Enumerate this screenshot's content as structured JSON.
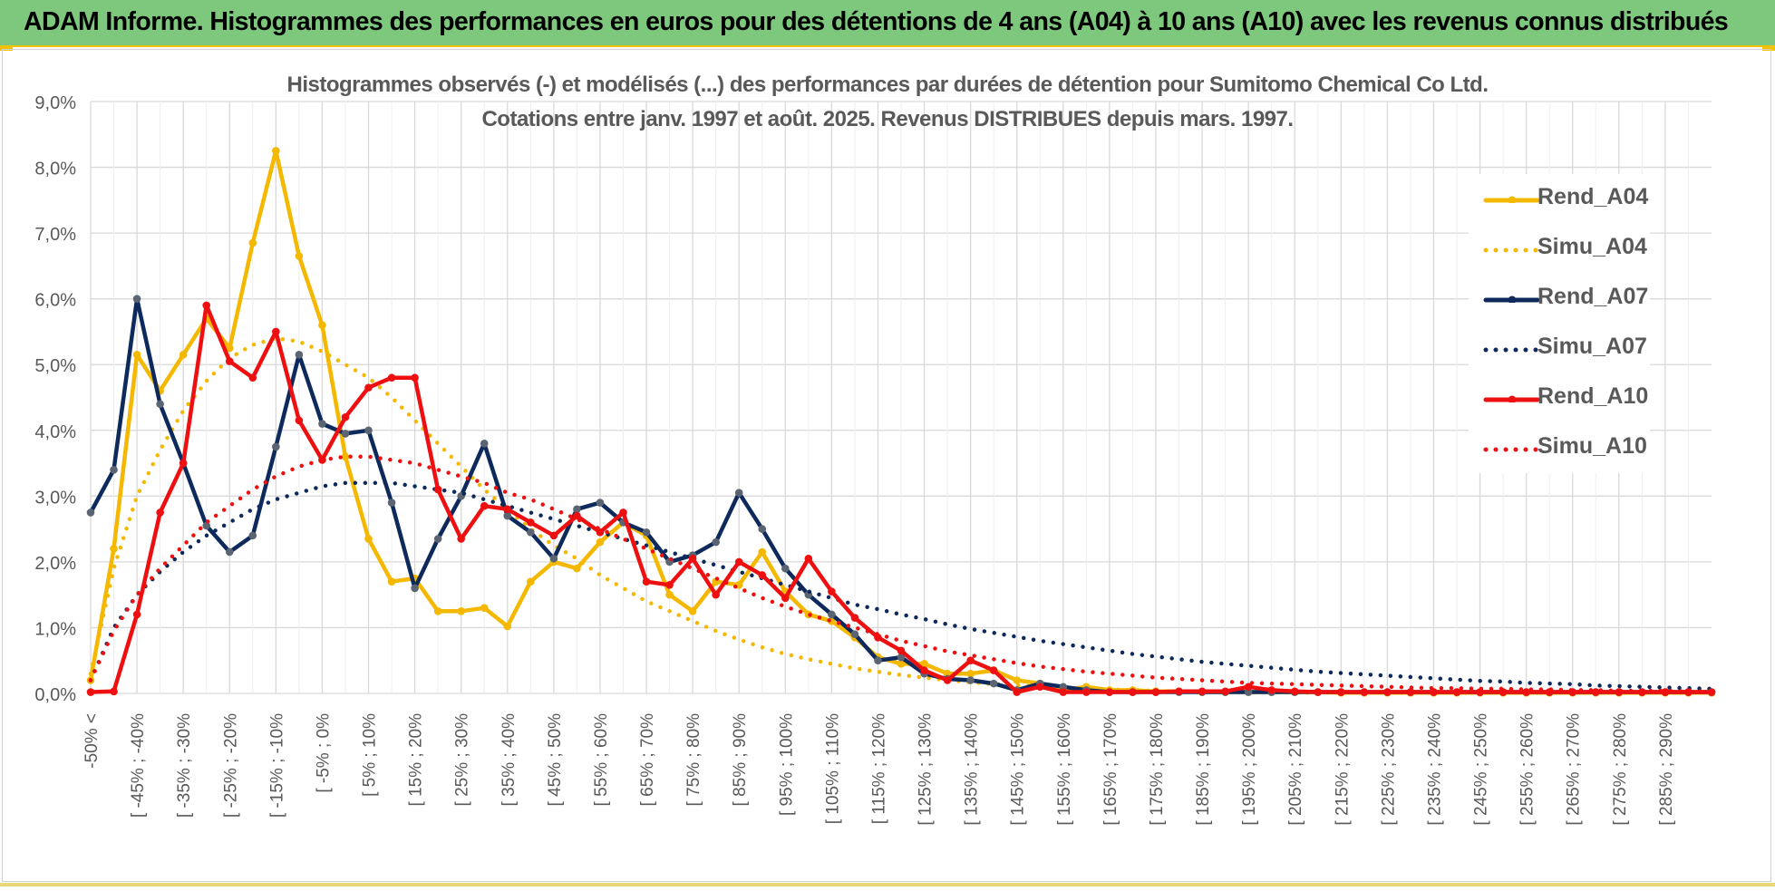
{
  "header": {
    "title": "ADAM Informe. Histogrammes des performances en euros pour des détentions de 4 ans (A04) à 10 ans (A10) avec les revenus connus distribués"
  },
  "colors": {
    "header_bg": "#7dc87c",
    "A04": "#f5b800",
    "A07": "#0e2a5c",
    "A10": "#ee1010",
    "grid": "#d9d9d9",
    "text": "#595959"
  },
  "chart_data": {
    "type": "line",
    "title": "Histogrammes observés (-) et modélisés (...) des performances par durées de détention pour Sumitomo Chemical Co Ltd.",
    "subtitle": "Cotations entre janv. 1997 et août. 2025. Revenus DISTRIBUES depuis mars. 1997.",
    "xlabel": "",
    "ylabel": "",
    "ylim": [
      0,
      9
    ],
    "y_unit": "%",
    "y_ticks": [
      "0,0%",
      "1,0%",
      "2,0%",
      "3,0%",
      "4,0%",
      "5,0%",
      "6,0%",
      "7,0%",
      "8,0%",
      "9,0%"
    ],
    "grid": true,
    "legend_position": "right",
    "x_labels": [
      "-50% <",
      "[ -45% ; -40%",
      "[ -35% ; -30%",
      "[ -25% ; -20%",
      "[ -15% ; -10%",
      "[ -5% ; 0%",
      "[ 5% ; 10%",
      "[ 15% ; 20%",
      "[ 25% ; 30%",
      "[ 35% ; 40%",
      "[ 45% ; 50%",
      "[ 55% ; 60%",
      "[ 65% ; 70%",
      "[ 75% ; 80%",
      "[ 85% ; 90%",
      "[ 95% ; 100%",
      "[ 105% ; 110%",
      "[ 115% ; 120%",
      "[ 125% ; 130%",
      "[ 135% ; 140%",
      "[ 145% ; 150%",
      "[ 155% ; 160%",
      "[ 165% ; 170%",
      "[ 175% ; 180%",
      "[ 185% ; 190%",
      "[ 195% ; 200%",
      "[ 205% ; 210%",
      "[ 215% ; 220%",
      "[ 225% ; 230%",
      "[ 235% ; 240%",
      "[ 245% ; 250%",
      "[ 255% ; 260%",
      "[ 265% ; 270%",
      "[ 275% ; 280%",
      "[ 285% ; 290%"
    ],
    "series": [
      {
        "name": "Rend_A04",
        "style": "solid",
        "color": "#f5b800",
        "values": [
          0.2,
          2.2,
          5.15,
          4.6,
          5.15,
          5.7,
          5.25,
          6.85,
          8.25,
          6.65,
          5.6,
          3.6,
          2.35,
          1.7,
          1.75,
          1.25,
          1.25,
          1.3,
          1.02,
          1.7,
          2.0,
          1.9,
          2.3,
          2.6,
          2.4,
          1.5,
          1.25,
          1.7,
          1.65,
          2.15,
          1.55,
          1.2,
          1.1,
          0.85,
          0.55,
          0.45,
          0.45,
          0.3,
          0.3,
          0.35,
          0.2,
          0.15,
          0.05,
          0.1,
          0.05,
          0.05,
          0.03,
          0.03,
          0.02,
          0.02,
          0.02,
          0.02,
          0.02,
          0.02,
          0.01,
          0.01,
          0.01,
          0.01,
          0.01,
          0.01,
          0.01,
          0.01,
          0.01,
          0.01,
          0.01,
          0.01,
          0.01,
          0.01,
          0.01,
          0.01,
          0.01
        ]
      },
      {
        "name": "Simu_A04",
        "style": "dotted",
        "color": "#f5b800",
        "values": [
          0.3,
          1.9,
          3.0,
          3.7,
          4.3,
          4.75,
          5.1,
          5.3,
          5.4,
          5.35,
          5.2,
          5.0,
          4.8,
          4.5,
          4.15,
          3.8,
          3.45,
          3.1,
          2.8,
          2.5,
          2.25,
          2.05,
          1.8,
          1.6,
          1.4,
          1.25,
          1.1,
          0.95,
          0.82,
          0.7,
          0.6,
          0.52,
          0.45,
          0.38,
          0.33,
          0.28,
          0.24,
          0.2,
          0.17,
          0.14,
          0.12,
          0.1,
          0.08,
          0.07,
          0.06,
          0.05,
          0.04,
          0.03,
          0.03,
          0.02,
          0.02,
          0.02,
          0.01,
          0.01,
          0.01,
          0.01,
          0.01,
          0.01,
          0.01,
          0.01,
          0.01,
          0.01,
          0.01,
          0.01,
          0.01,
          0.01,
          0.01,
          0.01,
          0.01,
          0.01,
          0.01
        ]
      },
      {
        "name": "Rend_A07",
        "style": "solid",
        "color": "#0e2a5c",
        "values": [
          2.75,
          3.4,
          6.0,
          4.4,
          3.5,
          2.55,
          2.15,
          2.4,
          3.75,
          5.15,
          4.1,
          3.95,
          4.0,
          2.9,
          1.6,
          2.35,
          3.0,
          3.8,
          2.7,
          2.45,
          2.05,
          2.8,
          2.9,
          2.6,
          2.45,
          2.0,
          2.1,
          2.3,
          3.05,
          2.5,
          1.9,
          1.5,
          1.2,
          0.9,
          0.5,
          0.55,
          0.3,
          0.22,
          0.2,
          0.15,
          0.05,
          0.15,
          0.1,
          0.05,
          0.02,
          0.02,
          0.02,
          0.02,
          0.02,
          0.02,
          0.02,
          0.02,
          0.02,
          0.02,
          0.02,
          0.02,
          0.02,
          0.02,
          0.02,
          0.02,
          0.02,
          0.02,
          0.02,
          0.02,
          0.02,
          0.02,
          0.02,
          0.02,
          0.02,
          0.02,
          0.02
        ]
      },
      {
        "name": "Simu_A07",
        "style": "dotted",
        "color": "#0e2a5c",
        "values": [
          0.2,
          1.0,
          1.5,
          1.85,
          2.15,
          2.4,
          2.6,
          2.8,
          2.95,
          3.05,
          3.15,
          3.2,
          3.2,
          3.2,
          3.15,
          3.1,
          3.05,
          2.95,
          2.85,
          2.75,
          2.65,
          2.55,
          2.45,
          2.35,
          2.25,
          2.15,
          2.05,
          1.95,
          1.85,
          1.75,
          1.65,
          1.55,
          1.45,
          1.35,
          1.28,
          1.2,
          1.13,
          1.05,
          0.98,
          0.92,
          0.86,
          0.8,
          0.75,
          0.7,
          0.65,
          0.6,
          0.56,
          0.52,
          0.48,
          0.45,
          0.42,
          0.39,
          0.36,
          0.33,
          0.31,
          0.29,
          0.27,
          0.25,
          0.23,
          0.21,
          0.19,
          0.18,
          0.16,
          0.15,
          0.14,
          0.12,
          0.11,
          0.1,
          0.09,
          0.08,
          0.07
        ]
      },
      {
        "name": "Rend_A10",
        "style": "solid",
        "color": "#ee1010",
        "values": [
          0.02,
          0.03,
          1.2,
          2.75,
          3.5,
          5.9,
          5.05,
          4.8,
          5.5,
          4.15,
          3.55,
          4.2,
          4.65,
          4.8,
          4.8,
          3.1,
          2.35,
          2.85,
          2.8,
          2.6,
          2.4,
          2.7,
          2.45,
          2.75,
          1.7,
          1.65,
          2.05,
          1.5,
          2.0,
          1.8,
          1.45,
          2.05,
          1.55,
          1.15,
          0.85,
          0.65,
          0.35,
          0.2,
          0.5,
          0.35,
          0.02,
          0.1,
          0.02,
          0.02,
          0.02,
          0.02,
          0.02,
          0.03,
          0.03,
          0.03,
          0.1,
          0.05,
          0.03,
          0.02,
          0.02,
          0.02,
          0.02,
          0.02,
          0.02,
          0.02,
          0.02,
          0.02,
          0.02,
          0.02,
          0.02,
          0.02,
          0.02,
          0.02,
          0.02,
          0.02,
          0.02
        ]
      },
      {
        "name": "Simu_A10",
        "style": "dotted",
        "color": "#ee1010",
        "values": [
          0.2,
          0.95,
          1.5,
          1.9,
          2.25,
          2.6,
          2.85,
          3.1,
          3.3,
          3.45,
          3.55,
          3.6,
          3.6,
          3.55,
          3.5,
          3.4,
          3.3,
          3.2,
          3.05,
          2.95,
          2.8,
          2.65,
          2.5,
          2.35,
          2.2,
          2.05,
          1.9,
          1.75,
          1.6,
          1.45,
          1.32,
          1.2,
          1.1,
          1.0,
          0.9,
          0.8,
          0.72,
          0.64,
          0.58,
          0.52,
          0.46,
          0.41,
          0.37,
          0.33,
          0.3,
          0.27,
          0.24,
          0.22,
          0.2,
          0.18,
          0.16,
          0.15,
          0.14,
          0.13,
          0.12,
          0.11,
          0.1,
          0.09,
          0.08,
          0.08,
          0.07,
          0.07,
          0.06,
          0.06,
          0.05,
          0.05,
          0.04,
          0.04,
          0.04,
          0.03,
          0.03
        ]
      }
    ]
  }
}
